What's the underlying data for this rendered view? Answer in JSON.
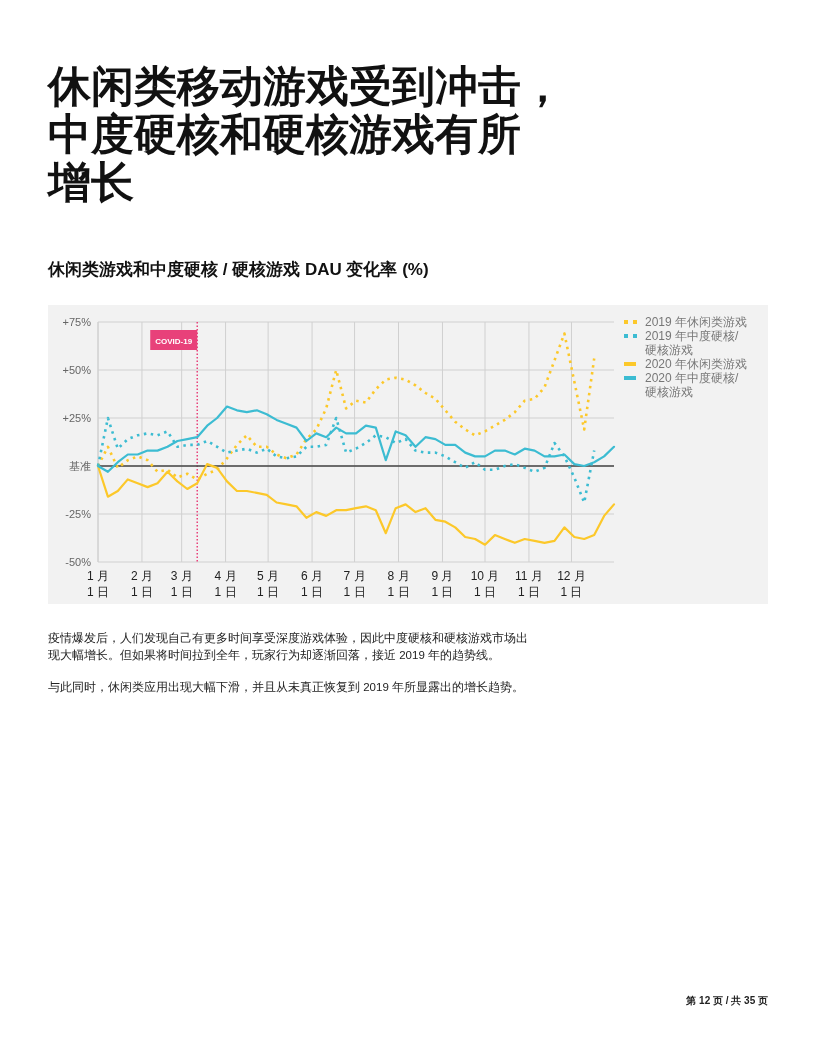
{
  "chart_data": {
    "type": "line",
    "title": "休闲类移动游戏受到冲击，中度硬核和硬核游戏有所增长",
    "subtitle": "休闲类游戏和中度硬核 / 硬核游戏 DAU 变化率 (%)",
    "annotations": [
      "疫情爆发后，人们发现自己有更多时间享受深度游戏体验，因此中度硬核和硬核游戏市场出现大幅增长。但如果将时间拉到全年，玩家行为却逐渐回落，接近 2019 年的趋势线。",
      "与此同时，休闲类应用出现大幅下滑，并且从未真正恢复到 2019 年所显露出的增长趋势。",
      "第 12 页 / 共 35 页"
    ],
    "x": [
      "--01-01",
      "--01-08",
      "--01-15",
      "--01-22",
      "--01-29",
      "--02-05",
      "--02-12",
      "--02-19",
      "--02-26",
      "--03-05",
      "--03-12",
      "--03-19",
      "--03-26",
      "--04-02",
      "--04-09",
      "--04-16",
      "--04-23",
      "--04-30",
      "--05-07",
      "--05-14",
      "--05-21",
      "--05-28",
      "--06-04",
      "--06-11",
      "--06-18",
      "--06-25",
      "--07-02",
      "--07-09",
      "--07-16",
      "--07-23",
      "--07-30",
      "--08-06",
      "--08-13",
      "--08-20",
      "--08-27",
      "--09-03",
      "--09-10",
      "--09-17",
      "--09-24",
      "--10-01",
      "--10-08",
      "--10-15",
      "--10-22",
      "--10-29",
      "--11-05",
      "--11-12",
      "--11-19",
      "--11-26",
      "--12-03",
      "--12-10",
      "--12-17",
      "--12-24",
      "--12-31"
    ],
    "xlim": [
      "--01-01",
      "--12-31"
    ],
    "xticks": [
      {
        "value": "--01-01",
        "label": "1 月\n1 日"
      },
      {
        "value": "--02-01",
        "label": "2 月\n1 日"
      },
      {
        "value": "--03-01",
        "label": "3 月\n1 日"
      },
      {
        "value": "--04-01",
        "label": "4 月\n1 日"
      },
      {
        "value": "--05-01",
        "label": "5 月\n1 日"
      },
      {
        "value": "--06-01",
        "label": "6 月\n1 日"
      },
      {
        "value": "--07-01",
        "label": "7 月\n1 日"
      },
      {
        "value": "--08-01",
        "label": "8 月\n1 日"
      },
      {
        "value": "--09-01",
        "label": "9 月\n1 日"
      },
      {
        "value": "--10-01",
        "label": "10 月\n1 日"
      },
      {
        "value": "--11-01",
        "label": "11 月\n1 日"
      },
      {
        "value": "--12-01",
        "label": "12 月\n1 日"
      }
    ],
    "ylim": [
      -50,
      75
    ],
    "yticks": [
      {
        "value": 75,
        "label": "+75%"
      },
      {
        "value": 50,
        "label": "+50%"
      },
      {
        "value": 25,
        "label": "+25%"
      },
      {
        "value": 0,
        "label": "基准"
      },
      {
        "value": -25,
        "label": "-25%"
      },
      {
        "value": -50,
        "label": "-50%"
      }
    ],
    "grid": true,
    "legend": "top right",
    "ref_lines": [
      {
        "axis": "x",
        "value": "--03-12",
        "label": "COVID-19",
        "color": "#e8417a",
        "line_style": "dotted"
      },
      {
        "axis": "y",
        "value": 0,
        "color": "#444444",
        "line_style": "solid"
      }
    ],
    "series": [
      {
        "name": "2019 年休闲类游戏",
        "color": "#fcc82a",
        "line_style": "dotted",
        "values": [
          0,
          10,
          -1,
          3,
          5,
          3,
          -3,
          -2,
          -6,
          -4,
          -7,
          -4,
          -2,
          4,
          11,
          16,
          10,
          10,
          6,
          4,
          6,
          14,
          19,
          30,
          50,
          30,
          34,
          33,
          40,
          45,
          46,
          45,
          42,
          38,
          35,
          29,
          23,
          19,
          16,
          18,
          21,
          24,
          28,
          34,
          35,
          41,
          55,
          69,
          44,
          19,
          56,
          null,
          null
        ]
      },
      {
        "name": "2019 年中度硬核/硬核游戏",
        "color": "#3cbcd2",
        "line_style": "dotted",
        "values": [
          0,
          25,
          9,
          14,
          16,
          17,
          16,
          18,
          10,
          11,
          11,
          13,
          10,
          7,
          8,
          9,
          7,
          9,
          5,
          4,
          5,
          10,
          10,
          11,
          25,
          7,
          9,
          12,
          16,
          15,
          12,
          14,
          8,
          7,
          7,
          5,
          2,
          -1,
          2,
          -2,
          -2,
          0,
          1,
          -1,
          -3,
          -1,
          12,
          5,
          -6,
          -19,
          8,
          null,
          null
        ]
      },
      {
        "name": "2020 年休闲类游戏",
        "color": "#fcc82a",
        "line_style": "solid",
        "values": [
          0,
          -16,
          -13,
          -7,
          -9,
          -11,
          -9,
          -3,
          -8,
          -12,
          -9,
          1,
          -1,
          -8,
          -13,
          -13,
          -14,
          -15,
          -19,
          -20,
          -21,
          -27,
          -24,
          -26,
          -23,
          -23,
          -22,
          -21,
          -23,
          -35,
          -22,
          -20,
          -24,
          -22,
          -28,
          -29,
          -32,
          -37,
          -38,
          -41,
          -36,
          -38,
          -40,
          -38,
          -39,
          -40,
          -39,
          -32,
          -37,
          -38,
          -36,
          -26,
          -20
        ]
      },
      {
        "name": "2020 年中度硬核/硬核游戏",
        "color": "#3cbcd2",
        "line_style": "solid",
        "values": [
          0,
          -3,
          2,
          6,
          6,
          8,
          8,
          10,
          13,
          14,
          15,
          21,
          25,
          31,
          29,
          28,
          29,
          27,
          24,
          22,
          20,
          13,
          17,
          15,
          20,
          17,
          17,
          21,
          20,
          3,
          18,
          16,
          10,
          15,
          14,
          11,
          11,
          7,
          5,
          5,
          8,
          8,
          6,
          9,
          8,
          5,
          5,
          6,
          1,
          0,
          2,
          5,
          10
        ]
      }
    ]
  }
}
